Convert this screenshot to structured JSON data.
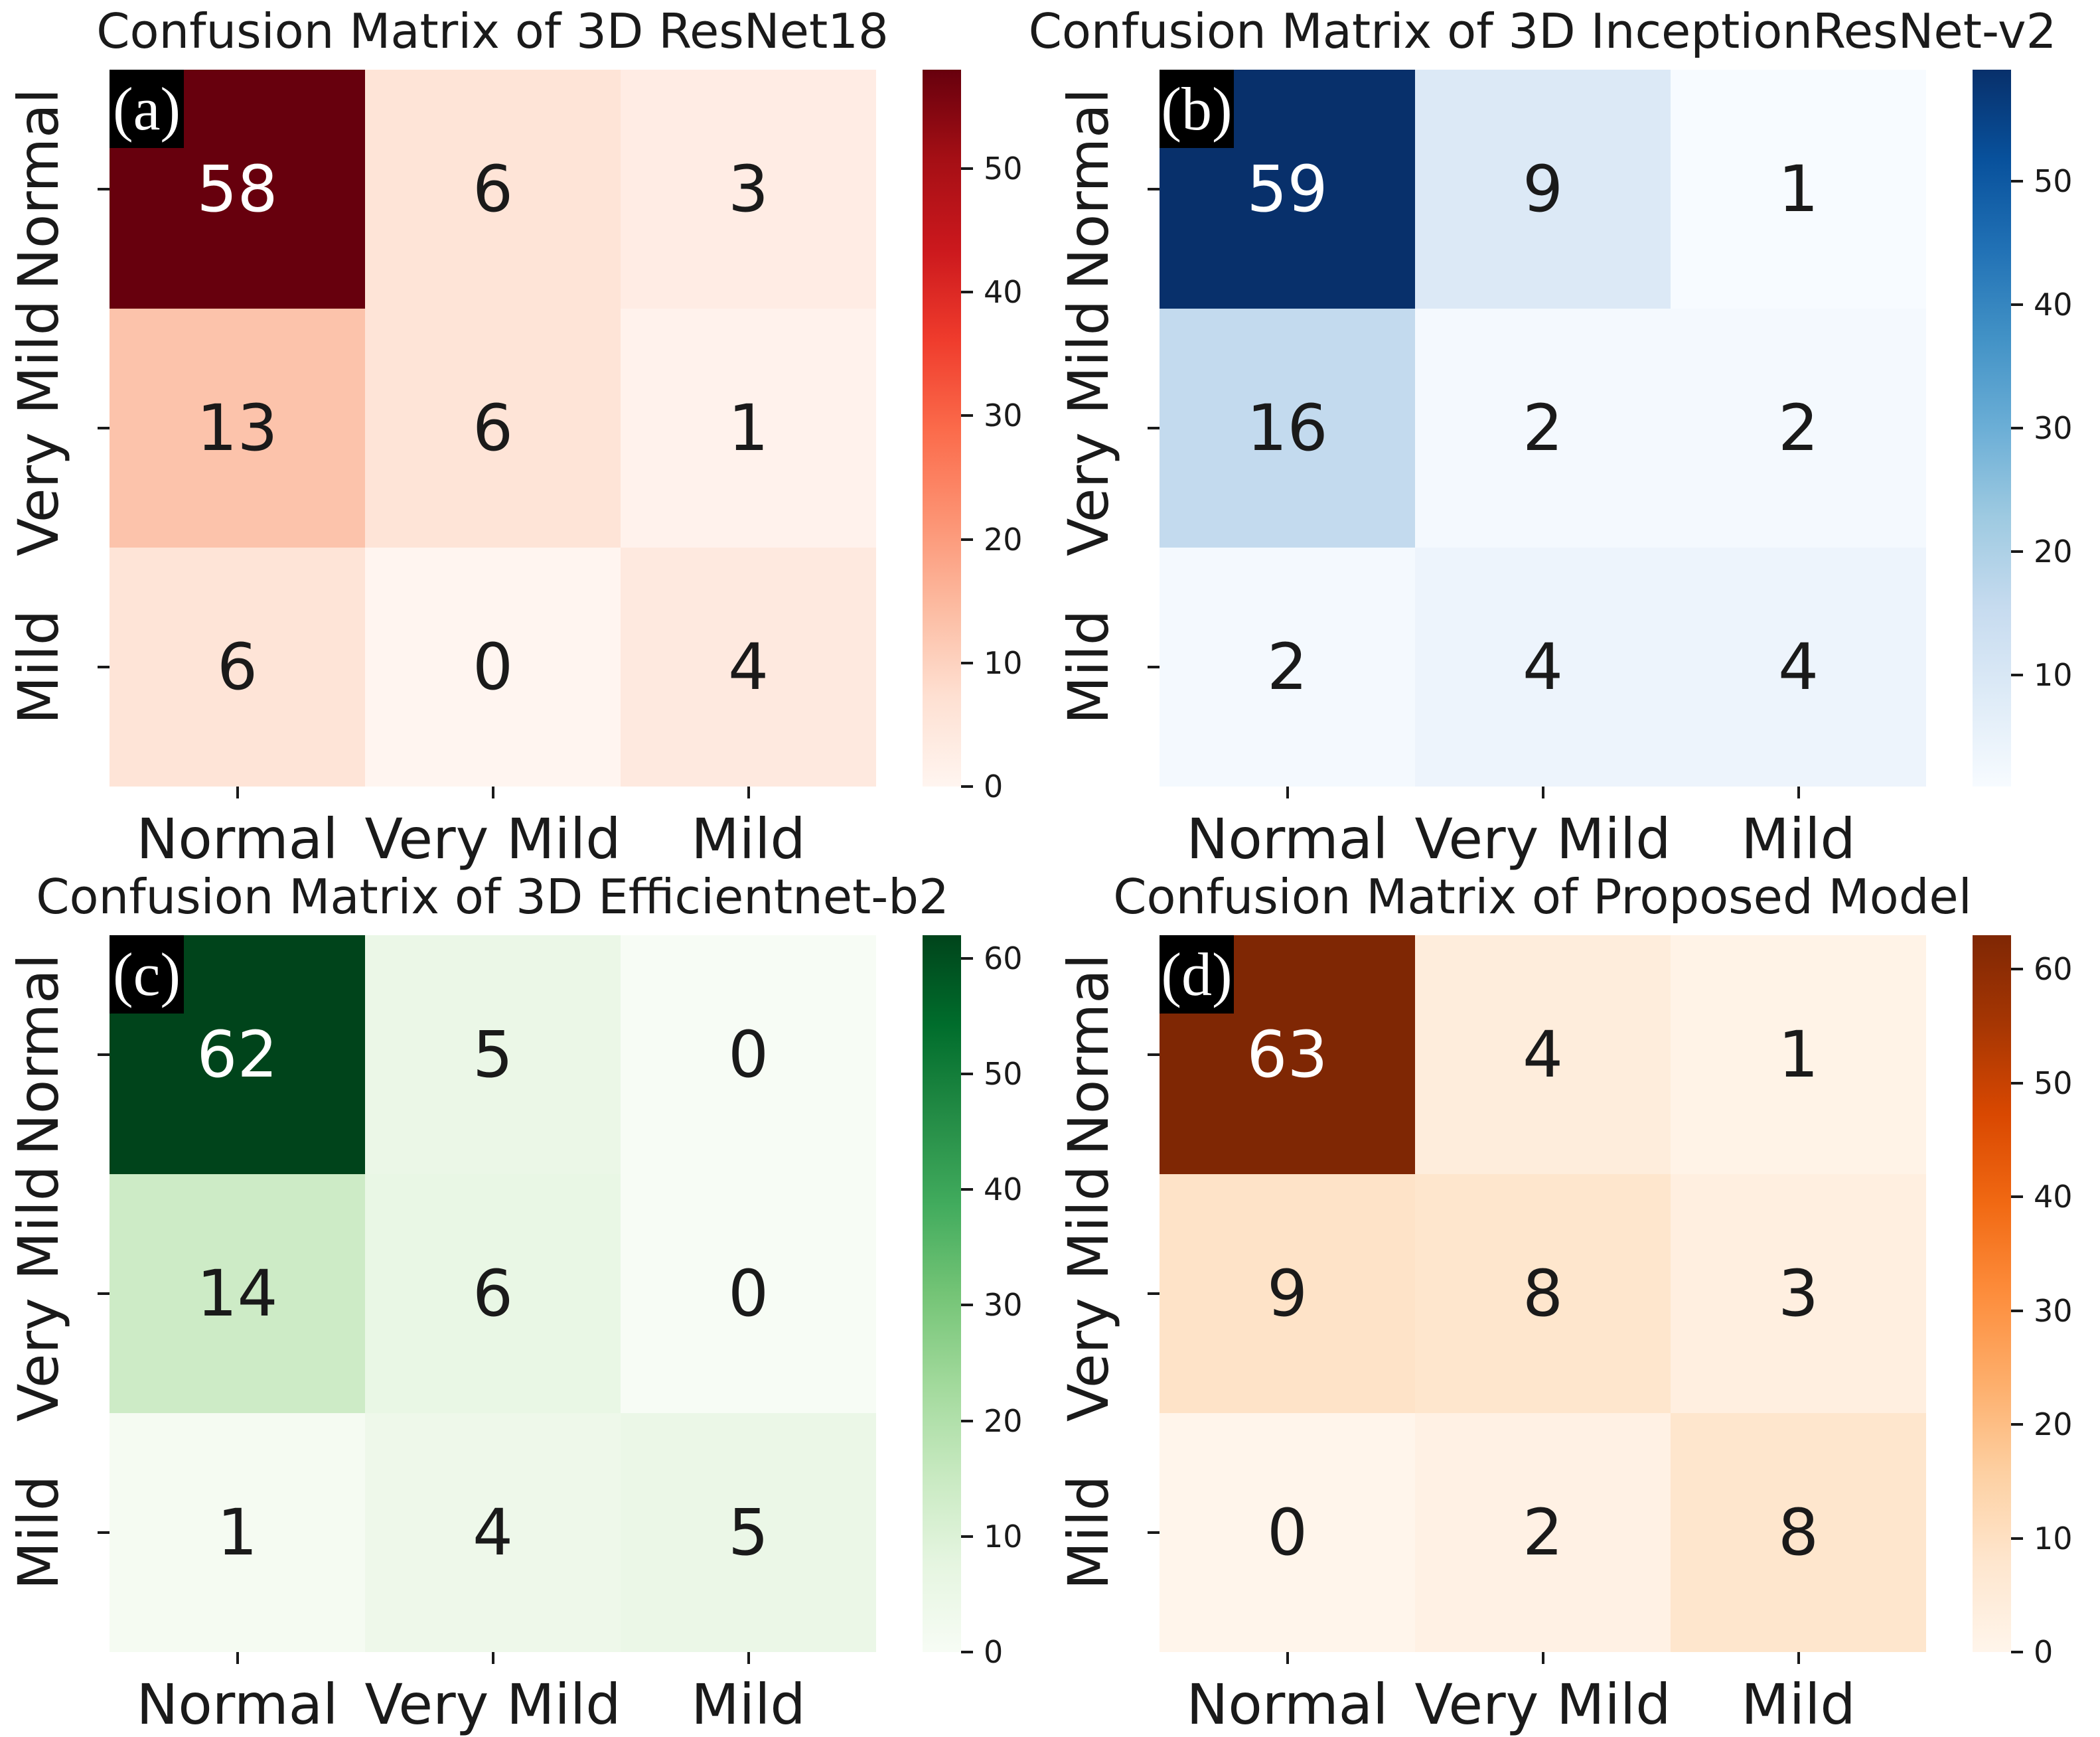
{
  "figure_label": "confusion-matrices-2x2",
  "colormaps": {
    "Reds": [
      "#fff5f0",
      "#fee0d2",
      "#fcbba1",
      "#fc9272",
      "#fb6a4a",
      "#ef3b2c",
      "#cb181d",
      "#a50f15",
      "#67000d"
    ],
    "Blues": [
      "#f7fbff",
      "#deebf7",
      "#c6dbef",
      "#9ecae1",
      "#6baed6",
      "#4292c6",
      "#2171b5",
      "#08519c",
      "#08306b"
    ],
    "Greens": [
      "#f7fcf5",
      "#e5f5e0",
      "#c7e9c0",
      "#a1d99b",
      "#74c476",
      "#41ab5d",
      "#238b45",
      "#006d2c",
      "#00441b"
    ],
    "Oranges": [
      "#fff5eb",
      "#fee6ce",
      "#fdd0a2",
      "#fdae6b",
      "#fd8d3c",
      "#f16913",
      "#d94801",
      "#a63603",
      "#7f2704"
    ]
  },
  "text_colors": {
    "dark": "#1a1a1a",
    "light": "#ffffff"
  },
  "chart_data": [
    {
      "type": "heatmap",
      "panel_label": "(a)",
      "title": "Confusion Matrix of 3D ResNet18",
      "x_categories": [
        "Normal",
        "Very Mild",
        "Mild"
      ],
      "y_categories": [
        "Normal",
        "Very Mild",
        "Mild"
      ],
      "values": [
        [
          58,
          6,
          3
        ],
        [
          13,
          6,
          1
        ],
        [
          6,
          0,
          4
        ]
      ],
      "colormap": "Reds",
      "vmin": 0,
      "vmax": 58,
      "colorbar_ticks": [
        0,
        10,
        20,
        30,
        40,
        50
      ],
      "legend_position": "right",
      "grid": false
    },
    {
      "type": "heatmap",
      "panel_label": "(b)",
      "title": "Confusion Matrix of 3D InceptionResNet-v2",
      "x_categories": [
        "Normal",
        "Very Mild",
        "Mild"
      ],
      "y_categories": [
        "Normal",
        "Very Mild",
        "Mild"
      ],
      "values": [
        [
          59,
          9,
          1
        ],
        [
          16,
          2,
          2
        ],
        [
          2,
          4,
          4
        ]
      ],
      "colormap": "Blues",
      "vmin": 1,
      "vmax": 59,
      "colorbar_ticks": [
        10,
        20,
        30,
        40,
        50
      ],
      "legend_position": "right",
      "grid": false
    },
    {
      "type": "heatmap",
      "panel_label": "(c)",
      "title": "Confusion Matrix of 3D Efficientnet-b2",
      "x_categories": [
        "Normal",
        "Very Mild",
        "Mild"
      ],
      "y_categories": [
        "Normal",
        "Very Mild",
        "Mild"
      ],
      "values": [
        [
          62,
          5,
          0
        ],
        [
          14,
          6,
          0
        ],
        [
          1,
          4,
          5
        ]
      ],
      "colormap": "Greens",
      "vmin": 0,
      "vmax": 62,
      "colorbar_ticks": [
        0,
        10,
        20,
        30,
        40,
        50,
        60
      ],
      "legend_position": "right",
      "grid": false
    },
    {
      "type": "heatmap",
      "panel_label": "(d)",
      "title": "Confusion Matrix of Proposed Model",
      "x_categories": [
        "Normal",
        "Very Mild",
        "Mild"
      ],
      "y_categories": [
        "Normal",
        "Very Mild",
        "Mild"
      ],
      "values": [
        [
          63,
          4,
          1
        ],
        [
          9,
          8,
          3
        ],
        [
          0,
          2,
          8
        ]
      ],
      "colormap": "Oranges",
      "vmin": 0,
      "vmax": 63,
      "colorbar_ticks": [
        0,
        10,
        20,
        30,
        40,
        50,
        60
      ],
      "legend_position": "right",
      "grid": false
    }
  ]
}
